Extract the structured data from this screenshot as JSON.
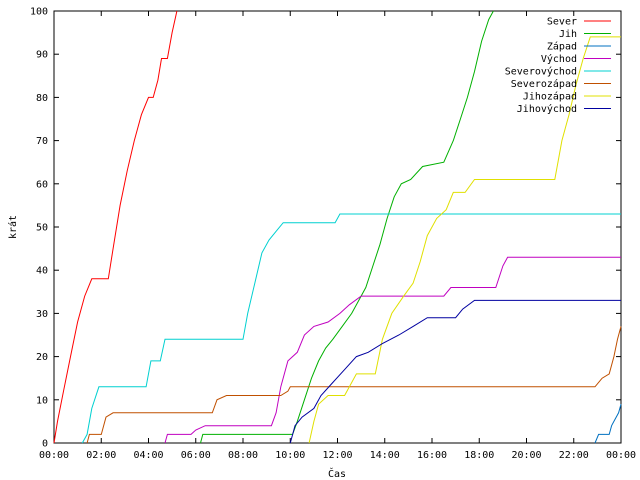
{
  "chart_data": {
    "type": "line",
    "xlabel": "Čas",
    "ylabel": "krát",
    "xlim": [
      0,
      24
    ],
    "ylim": [
      0,
      100
    ],
    "x_ticks": [
      0,
      2,
      4,
      6,
      8,
      10,
      12,
      14,
      16,
      18,
      20,
      22,
      24
    ],
    "x_tick_labels": [
      "00:00",
      "02:00",
      "04:00",
      "06:00",
      "08:00",
      "10:00",
      "12:00",
      "14:00",
      "16:00",
      "18:00",
      "20:00",
      "22:00",
      "00:00"
    ],
    "y_ticks": [
      0,
      10,
      20,
      30,
      40,
      50,
      60,
      70,
      80,
      90,
      100
    ],
    "y_tick_labels": [
      "0",
      "10",
      "20",
      "30",
      "40",
      "50",
      "60",
      "70",
      "80",
      "90",
      "100"
    ],
    "grid": false,
    "legend_position": "top-right",
    "series": [
      {
        "name": "Sever",
        "color": "#ff0000",
        "points": [
          [
            0,
            0
          ],
          [
            0.15,
            5
          ],
          [
            0.4,
            12
          ],
          [
            0.7,
            20
          ],
          [
            1.0,
            28
          ],
          [
            1.3,
            34
          ],
          [
            1.6,
            38
          ],
          [
            2.3,
            38
          ],
          [
            2.5,
            45
          ],
          [
            2.8,
            55
          ],
          [
            3.1,
            63
          ],
          [
            3.4,
            70
          ],
          [
            3.7,
            76
          ],
          [
            4.0,
            80
          ],
          [
            4.2,
            80
          ],
          [
            4.4,
            84
          ],
          [
            4.55,
            89
          ],
          [
            4.8,
            89
          ],
          [
            5.0,
            95
          ],
          [
            5.2,
            100
          ]
        ]
      },
      {
        "name": "Jih",
        "color": "#00b000",
        "points": [
          [
            6.2,
            0
          ],
          [
            6.3,
            2
          ],
          [
            10.1,
            2
          ],
          [
            10.3,
            5
          ],
          [
            10.6,
            10
          ],
          [
            10.9,
            15
          ],
          [
            11.2,
            19
          ],
          [
            11.5,
            22
          ],
          [
            11.8,
            24
          ],
          [
            12.2,
            27
          ],
          [
            12.6,
            30
          ],
          [
            12.9,
            33
          ],
          [
            13.2,
            36
          ],
          [
            13.5,
            41
          ],
          [
            13.8,
            46
          ],
          [
            14.1,
            52
          ],
          [
            14.4,
            57
          ],
          [
            14.7,
            60
          ],
          [
            15.1,
            61
          ],
          [
            15.6,
            64
          ],
          [
            16.5,
            65
          ],
          [
            16.9,
            70
          ],
          [
            17.2,
            75
          ],
          [
            17.5,
            80
          ],
          [
            17.8,
            86
          ],
          [
            18.1,
            93
          ],
          [
            18.4,
            98
          ],
          [
            18.6,
            100
          ]
        ]
      },
      {
        "name": "Západ",
        "color": "#0070c0",
        "points": [
          [
            22.9,
            0
          ],
          [
            23.05,
            2
          ],
          [
            23.5,
            2
          ],
          [
            23.6,
            4
          ],
          [
            23.7,
            5
          ],
          [
            23.9,
            7
          ],
          [
            24,
            9
          ]
        ]
      },
      {
        "name": "Východ",
        "color": "#c000c0",
        "points": [
          [
            4.7,
            0
          ],
          [
            4.8,
            2
          ],
          [
            5.8,
            2
          ],
          [
            6.0,
            3
          ],
          [
            6.4,
            4
          ],
          [
            9.2,
            4
          ],
          [
            9.4,
            7
          ],
          [
            9.6,
            13
          ],
          [
            9.9,
            19
          ],
          [
            10.3,
            21
          ],
          [
            10.6,
            25
          ],
          [
            11.0,
            27
          ],
          [
            11.6,
            28
          ],
          [
            12.1,
            30
          ],
          [
            12.5,
            32
          ],
          [
            13.0,
            34
          ],
          [
            16.5,
            34
          ],
          [
            16.8,
            36
          ],
          [
            18.7,
            36
          ],
          [
            19.0,
            41
          ],
          [
            19.2,
            43
          ],
          [
            24,
            43
          ]
        ]
      },
      {
        "name": "Severovýchod",
        "color": "#00d0d0",
        "points": [
          [
            1.2,
            0
          ],
          [
            1.4,
            2
          ],
          [
            1.6,
            8
          ],
          [
            1.9,
            13
          ],
          [
            3.9,
            13
          ],
          [
            4.1,
            19
          ],
          [
            4.5,
            19
          ],
          [
            4.7,
            24
          ],
          [
            8.0,
            24
          ],
          [
            8.2,
            30
          ],
          [
            8.5,
            37
          ],
          [
            8.8,
            44
          ],
          [
            9.1,
            47
          ],
          [
            9.4,
            49
          ],
          [
            9.7,
            51
          ],
          [
            11.9,
            51
          ],
          [
            12.1,
            53
          ],
          [
            24,
            53
          ]
        ]
      },
      {
        "name": "Severozápad",
        "color": "#c05000",
        "points": [
          [
            1.4,
            0
          ],
          [
            1.5,
            2
          ],
          [
            2.0,
            2
          ],
          [
            2.2,
            6
          ],
          [
            2.5,
            7
          ],
          [
            6.7,
            7
          ],
          [
            6.9,
            10
          ],
          [
            7.3,
            11
          ],
          [
            9.6,
            11
          ],
          [
            9.9,
            12
          ],
          [
            10.0,
            13
          ],
          [
            22.9,
            13
          ],
          [
            23.2,
            15
          ],
          [
            23.5,
            16
          ],
          [
            23.7,
            20
          ],
          [
            23.85,
            24
          ],
          [
            24,
            27
          ]
        ]
      },
      {
        "name": "Jihozápad",
        "color": "#e0e000",
        "points": [
          [
            10.8,
            0
          ],
          [
            11.0,
            5
          ],
          [
            11.2,
            9
          ],
          [
            11.6,
            11
          ],
          [
            12.3,
            11
          ],
          [
            12.8,
            16
          ],
          [
            13.6,
            16
          ],
          [
            13.9,
            24
          ],
          [
            14.3,
            30
          ],
          [
            14.8,
            34
          ],
          [
            15.2,
            37
          ],
          [
            15.5,
            42
          ],
          [
            15.8,
            48
          ],
          [
            16.2,
            52
          ],
          [
            16.6,
            54
          ],
          [
            16.9,
            58
          ],
          [
            17.4,
            58
          ],
          [
            17.8,
            61
          ],
          [
            21.2,
            61
          ],
          [
            21.5,
            70
          ],
          [
            21.8,
            76
          ],
          [
            22.1,
            83
          ],
          [
            22.4,
            89
          ],
          [
            22.7,
            94
          ],
          [
            24,
            94
          ]
        ]
      },
      {
        "name": "Jihovýchod",
        "color": "#0000a0",
        "points": [
          [
            10.0,
            0
          ],
          [
            10.2,
            4
          ],
          [
            10.5,
            6
          ],
          [
            11.0,
            8
          ],
          [
            11.3,
            11
          ],
          [
            11.8,
            14
          ],
          [
            12.3,
            17
          ],
          [
            12.8,
            20
          ],
          [
            13.3,
            21
          ],
          [
            13.9,
            23
          ],
          [
            14.6,
            25
          ],
          [
            15.2,
            27
          ],
          [
            15.8,
            29
          ],
          [
            17.0,
            29
          ],
          [
            17.3,
            31
          ],
          [
            17.8,
            33
          ],
          [
            24,
            33
          ]
        ]
      }
    ]
  }
}
